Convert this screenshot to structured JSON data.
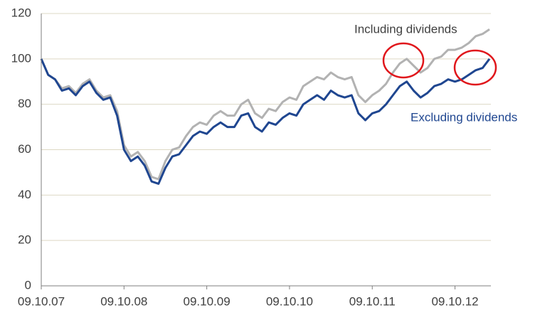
{
  "chart_data": {
    "type": "line",
    "categories": [
      "09.10.07",
      null,
      null,
      null,
      null,
      null,
      null,
      null,
      null,
      null,
      null,
      null,
      "09.10.08",
      null,
      null,
      null,
      null,
      null,
      null,
      null,
      null,
      null,
      null,
      null,
      "09.10.09",
      null,
      null,
      null,
      null,
      null,
      null,
      null,
      null,
      null,
      null,
      null,
      "09.10.10",
      null,
      null,
      null,
      null,
      null,
      null,
      null,
      null,
      null,
      null,
      null,
      "09.10.11",
      null,
      null,
      null,
      null,
      null,
      null,
      null,
      null,
      null,
      null,
      null,
      "09.10.12",
      null,
      null,
      null,
      null,
      null
    ],
    "series": [
      {
        "name": "Including dividends",
        "color": "#b2b2b2",
        "values": [
          100,
          93,
          91,
          87,
          88,
          85,
          89,
          91,
          86,
          83,
          84,
          77,
          62,
          57,
          59,
          55,
          48,
          47,
          55,
          60,
          61,
          66,
          70,
          72,
          71,
          75,
          77,
          75,
          75,
          80,
          82,
          76,
          74,
          78,
          77,
          81,
          83,
          82,
          88,
          90,
          92,
          91,
          94,
          92,
          91,
          92,
          84,
          81,
          84,
          86,
          89,
          94,
          98,
          100,
          97,
          94,
          96,
          100,
          101,
          104,
          104,
          105,
          107,
          110,
          111,
          113
        ]
      },
      {
        "name": "Excluding dividends",
        "color": "#1f4690",
        "values": [
          100,
          93,
          91,
          86,
          87,
          84,
          88,
          90,
          85,
          82,
          83,
          75,
          60,
          55,
          57,
          53,
          46,
          45,
          52,
          57,
          58,
          62,
          66,
          68,
          67,
          70,
          72,
          70,
          70,
          75,
          76,
          70,
          68,
          72,
          71,
          74,
          76,
          75,
          80,
          82,
          84,
          82,
          86,
          84,
          83,
          84,
          76,
          73,
          76,
          77,
          80,
          84,
          88,
          90,
          86,
          83,
          85,
          88,
          89,
          91,
          90,
          91,
          93,
          95,
          96,
          100
        ]
      }
    ],
    "ylim": [
      0,
      120
    ],
    "yticks": [
      0,
      20,
      40,
      60,
      80,
      100,
      120
    ],
    "grid": true
  }
}
